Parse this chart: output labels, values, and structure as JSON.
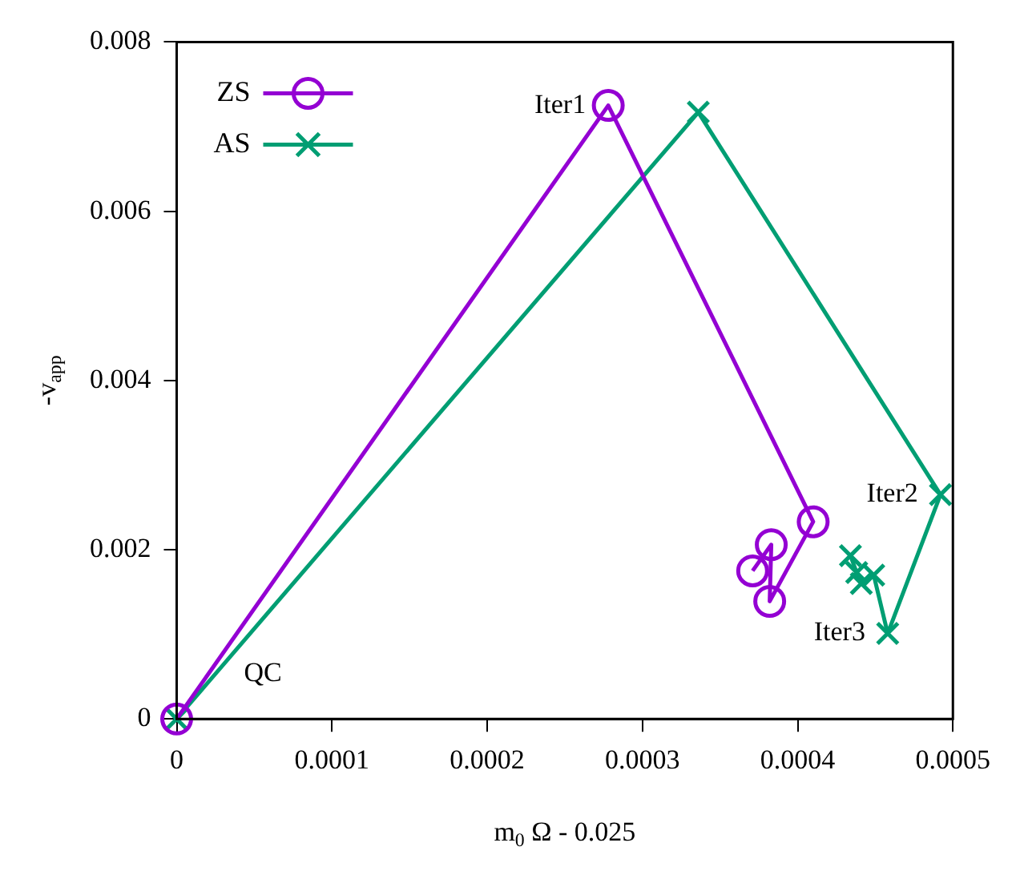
{
  "chart_data": {
    "type": "line",
    "xlabel": "m$_{0}$ Ω - 0.025",
    "ylabel": "-v$_{app}$",
    "xlim": [
      0,
      0.0005
    ],
    "xticks": [
      0,
      0.0001,
      0.0002,
      0.0003,
      0.0004,
      0.0005
    ],
    "ylim": [
      0,
      0.008
    ],
    "yticks": [
      0,
      0.002,
      0.004,
      0.006,
      0.008
    ],
    "grid": false,
    "legend": "top left",
    "series": [
      {
        "name": "ZS",
        "color": "#9400d3",
        "marker": "circle",
        "x": [
          0,
          0.000278,
          0.00041,
          0.000382,
          0.000383,
          0.000371
        ],
        "values": [
          0,
          0.00725,
          0.00233,
          0.00139,
          0.00206,
          0.00175
        ]
      },
      {
        "name": "AS",
        "color": "#009e73",
        "marker": "cross",
        "x": [
          0,
          0.000336,
          0.000492,
          0.000458,
          0.000449,
          0.000441,
          0.000438,
          0.000434
        ],
        "values": [
          0,
          0.00717,
          0.00265,
          0.00101,
          0.0017,
          0.0016,
          0.00173,
          0.00193
        ]
      }
    ],
    "annotations": [
      {
        "text": "Iter1",
        "x": 0.000278,
        "y": 0.00725
      },
      {
        "text": "Iter2",
        "x": 0.000492,
        "y": 0.00265
      },
      {
        "text": "Iter3",
        "x": 0.000458,
        "y": 0.00101
      },
      {
        "text": "QC",
        "x": 0,
        "y": 0
      }
    ]
  }
}
